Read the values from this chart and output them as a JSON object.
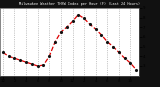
{
  "title": "Milwaukee Weather THSW Index per Hour (F) (Last 24 Hours)",
  "bg_color": "#111111",
  "plot_bg_color": "#ffffff",
  "line_color": "#dd0000",
  "marker_color": "#111111",
  "grid_color": "#888888",
  "ylim": [
    20,
    90
  ],
  "ytick_values": [
    30,
    40,
    50,
    60,
    70,
    80,
    90
  ],
  "ytick_labels": [
    "3",
    "4",
    "5",
    "6",
    "7",
    "8",
    "9"
  ],
  "hours": [
    0,
    1,
    2,
    3,
    4,
    5,
    6,
    7,
    8,
    9,
    10,
    11,
    12,
    13,
    14,
    15,
    16,
    17,
    18,
    19,
    20,
    21,
    22,
    23
  ],
  "values": [
    44,
    40,
    38,
    36,
    34,
    32,
    30,
    31,
    40,
    55,
    65,
    70,
    76,
    83,
    79,
    73,
    68,
    62,
    55,
    50,
    44,
    38,
    33,
    26
  ],
  "xtick_positions": [
    0,
    2,
    4,
    6,
    8,
    10,
    12,
    14,
    16,
    18,
    20,
    22
  ],
  "xtick_labels": [
    "12",
    "2",
    "4",
    "6",
    "8",
    "10",
    "12",
    "2",
    "4",
    "6",
    "8",
    "10"
  ]
}
